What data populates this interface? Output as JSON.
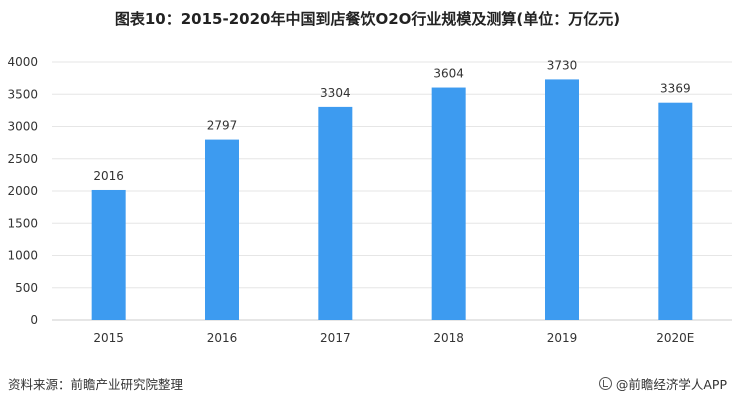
{
  "title": "图表10：2015-2020年中国到店餐饮O2O行业规模及测算(单位：万亿元)",
  "footer": {
    "source": "资料来源：前瞻产业研究院整理",
    "brand": "@前瞻经济学人APP"
  },
  "colors": {
    "bar": "#3d9bf0",
    "grid": "#e6e6e6",
    "axis": "#cccccc"
  },
  "chart_data": {
    "type": "bar",
    "categories": [
      "2015",
      "2016",
      "2017",
      "2018",
      "2019",
      "2020E"
    ],
    "values": [
      2016,
      2797,
      3304,
      3604,
      3730,
      3369
    ],
    "ylim": [
      0,
      4000
    ],
    "yticks": [
      0,
      500,
      1000,
      1500,
      2000,
      2500,
      3000,
      3500,
      4000
    ],
    "grid": true,
    "legend": "none"
  }
}
